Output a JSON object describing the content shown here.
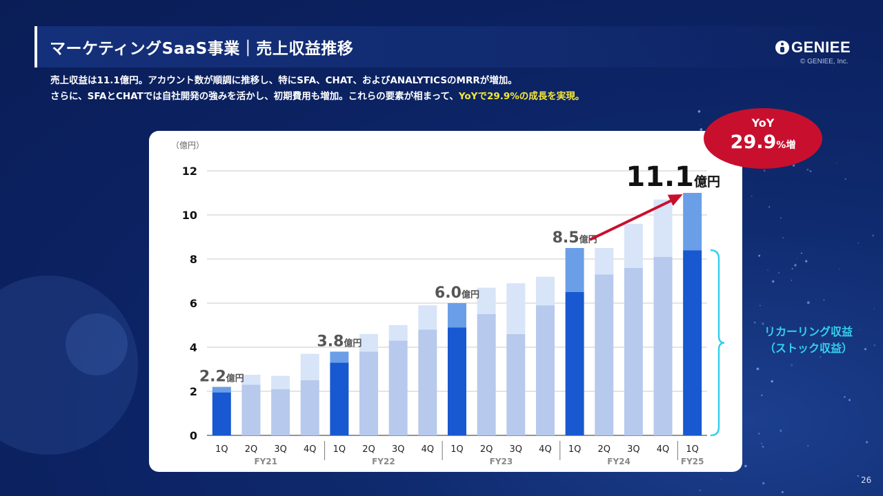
{
  "title": "マーケティングSaaS事業｜売上収益推移",
  "logo": {
    "text": "GENIEE",
    "copyright": "© GENIEE, Inc."
  },
  "description": {
    "line1": "売上収益は11.1億円。アカウント数が順調に推移し、特にSFA、CHAT、およびANALYTICSのMRRが増加。",
    "line2_plain": "さらに、SFAとCHATでは自社開発の強みを活かし、初期費用も増加。これらの要素が相まって、",
    "line2_highlight": "YoYで29.9%の成長を実現。"
  },
  "yoy_badge": {
    "label": "YoY",
    "value": "29.9",
    "suffix": "%増"
  },
  "recurring_label": {
    "line1": "リカーリング収益",
    "line2": "（ストック収益）"
  },
  "page_number": "26",
  "colors": {
    "highlight_dark": "#1858d0",
    "highlight_light": "#6a9fe8",
    "past_dark": "#b7c9ec",
    "past_light": "#d8e4f8",
    "arrow": "#c8102e",
    "bracket": "#34d0ec",
    "yellow_text": "#f7e83a"
  },
  "chart_data": {
    "type": "bar",
    "stacked": true,
    "unit_label": "（億円）",
    "ylim": [
      0,
      12
    ],
    "yticks": [
      0,
      2,
      4,
      6,
      8,
      10,
      12
    ],
    "grid": true,
    "categories": [
      "1Q",
      "2Q",
      "3Q",
      "4Q",
      "1Q",
      "2Q",
      "3Q",
      "4Q",
      "1Q",
      "2Q",
      "3Q",
      "4Q",
      "1Q",
      "2Q",
      "3Q",
      "4Q",
      "1Q"
    ],
    "fiscal_years": [
      {
        "label": "FY21",
        "quarters": 4
      },
      {
        "label": "FY22",
        "quarters": 4
      },
      {
        "label": "FY23",
        "quarters": 4
      },
      {
        "label": "FY24",
        "quarters": 4
      },
      {
        "label": "FY25",
        "quarters": 1
      }
    ],
    "highlighted_indices": [
      0,
      4,
      8,
      12,
      16
    ],
    "series": [
      {
        "values": [
          1.95,
          2.3,
          2.1,
          2.5,
          3.3,
          3.8,
          4.3,
          4.8,
          4.9,
          5.5,
          4.6,
          5.9,
          6.5,
          7.3,
          7.6,
          8.1,
          8.4
        ]
      },
      {
        "values": [
          0.25,
          0.45,
          0.6,
          1.2,
          0.5,
          0.8,
          0.7,
          1.1,
          1.1,
          1.2,
          2.3,
          1.3,
          2.0,
          1.2,
          2.0,
          2.6,
          2.6
        ]
      }
    ],
    "annotations": [
      {
        "index": 0,
        "value": "2.2",
        "unit": "億円"
      },
      {
        "index": 4,
        "value": "3.8",
        "unit": "億円"
      },
      {
        "index": 8,
        "value": "6.0",
        "unit": "億円"
      },
      {
        "index": 12,
        "value": "8.5",
        "unit": "億円"
      },
      {
        "index": 16,
        "value": "11.1",
        "unit": "億円"
      }
    ]
  }
}
